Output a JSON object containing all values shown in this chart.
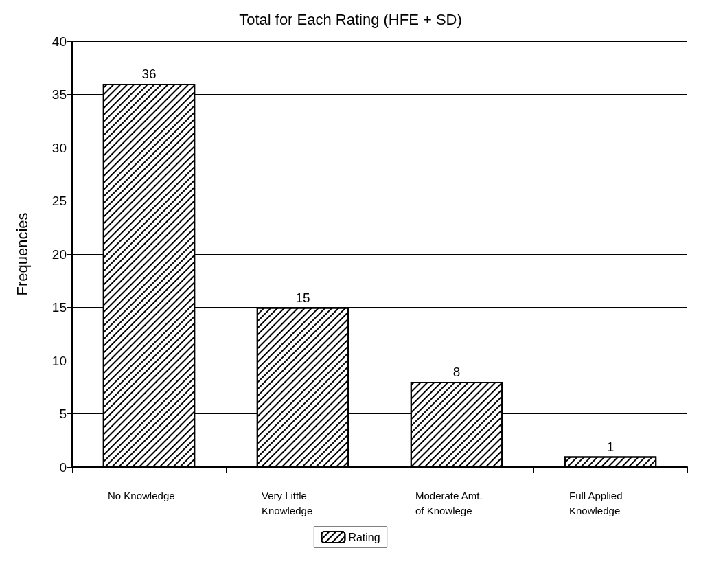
{
  "chart_data": {
    "type": "bar",
    "title": "Total for Each Rating (HFE + SD)",
    "ylabel": "Frequencies",
    "categories": [
      "No Knowledge",
      "Very Little\nKnowledge",
      "Moderate Amt.\nof Knowlege",
      "Full Applied\nKnowledge"
    ],
    "series": [
      {
        "name": "Rating",
        "color": "#ffffff",
        "values": [
          36,
          15,
          8,
          1
        ]
      }
    ],
    "ylim": [
      0,
      40
    ],
    "yticks": [
      0,
      5,
      10,
      15,
      20,
      25,
      30,
      35,
      40
    ],
    "grid": "y",
    "legend": "bottom",
    "data_labels": true
  }
}
